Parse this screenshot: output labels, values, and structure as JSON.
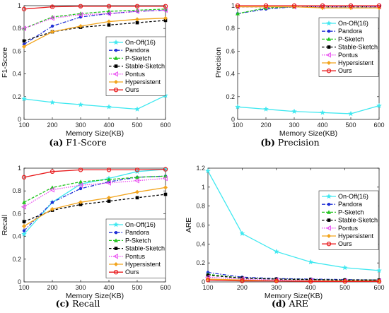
{
  "colors": {
    "On-Off(16)": "#3fe8f0",
    "Pandora": "#1f2fd6",
    "P-Sketch": "#22c41f",
    "Stable-Sketch": "#000000",
    "Pontus": "#e94cf0",
    "Hypersistent": "#f2a41c",
    "Ours": "#e8191b"
  },
  "chart_data": [
    {
      "type": "line",
      "caption_letter": "(a)",
      "caption_text": "F1-Score",
      "xlabel": "Memory Size(KB)",
      "ylabel": "F1-Score",
      "x": [
        100,
        200,
        300,
        400,
        500,
        600
      ],
      "xlim": [
        100,
        600
      ],
      "ylim": [
        0,
        1
      ],
      "xticks": [
        "100",
        "200",
        "300",
        "400",
        "500",
        "600"
      ],
      "yticks": [
        "0",
        "0.2",
        "0.4",
        "0.6",
        "0.8",
        "1"
      ],
      "ytick_values": [
        0,
        0.2,
        0.4,
        0.6,
        0.8,
        1
      ],
      "legend_position": "lower-right",
      "series": [
        {
          "name": "On-Off(16)",
          "values": [
            0.18,
            0.15,
            0.13,
            0.11,
            0.09,
            0.21
          ]
        },
        {
          "name": "Pandora",
          "values": [
            0.66,
            0.82,
            0.9,
            0.93,
            0.95,
            0.96
          ]
        },
        {
          "name": "P-Sketch",
          "values": [
            0.8,
            0.9,
            0.93,
            0.95,
            0.96,
            0.97
          ]
        },
        {
          "name": "Stable-Sketch",
          "values": [
            0.69,
            0.77,
            0.81,
            0.83,
            0.85,
            0.87
          ]
        },
        {
          "name": "Pontus",
          "values": [
            0.8,
            0.89,
            0.92,
            0.93,
            0.95,
            0.96
          ]
        },
        {
          "name": "Hypersistent",
          "values": [
            0.64,
            0.77,
            0.82,
            0.86,
            0.88,
            0.89
          ]
        },
        {
          "name": "Ours",
          "values": [
            0.97,
            0.99,
            0.995,
            0.995,
            0.995,
            0.995
          ]
        }
      ]
    },
    {
      "type": "line",
      "caption_letter": "(b)",
      "caption_text": "Precision",
      "xlabel": "Memory Size(KB)",
      "ylabel": "Precision",
      "x": [
        100,
        200,
        300,
        400,
        500,
        600
      ],
      "xlim": [
        100,
        600
      ],
      "ylim": [
        0,
        1
      ],
      "xticks": [
        "100",
        "200",
        "300",
        "400",
        "500",
        "600"
      ],
      "yticks": [
        "0",
        "0.2",
        "0.4",
        "0.6",
        "0.8",
        "1"
      ],
      "ytick_values": [
        0,
        0.2,
        0.4,
        0.6,
        0.8,
        1
      ],
      "legend_position": "middle-right",
      "series": [
        {
          "name": "On-Off(16)",
          "values": [
            0.11,
            0.09,
            0.07,
            0.06,
            0.05,
            0.12
          ]
        },
        {
          "name": "Pandora",
          "values": [
            0.93,
            0.97,
            0.99,
            0.99,
            0.99,
            0.99
          ]
        },
        {
          "name": "P-Sketch",
          "values": [
            0.93,
            0.98,
            0.99,
            0.99,
            0.99,
            0.99
          ]
        },
        {
          "name": "Stable-Sketch",
          "values": [
            0.99,
            0.99,
            0.99,
            0.99,
            0.99,
            0.99
          ]
        },
        {
          "name": "Pontus",
          "values": [
            0.99,
            0.99,
            0.99,
            0.99,
            0.99,
            0.99
          ]
        },
        {
          "name": "Hypersistent",
          "values": [
            0.99,
            0.99,
            0.99,
            0.98,
            0.98,
            0.98
          ]
        },
        {
          "name": "Ours",
          "values": [
            1.0,
            1.0,
            1.0,
            1.0,
            1.0,
            1.0
          ]
        }
      ]
    },
    {
      "type": "line",
      "caption_letter": "(c)",
      "caption_text": "Recall",
      "xlabel": "Memory Size(KB)",
      "ylabel": "Recall",
      "x": [
        100,
        200,
        300,
        400,
        500,
        600
      ],
      "xlim": [
        100,
        600
      ],
      "ylim": [
        0,
        1
      ],
      "xticks": [
        "100",
        "200",
        "300",
        "400",
        "500",
        "600"
      ],
      "yticks": [
        "0",
        "0.2",
        "0.4",
        "0.6",
        "0.8",
        "1"
      ],
      "ytick_values": [
        0,
        0.2,
        0.4,
        0.6,
        0.8,
        1
      ],
      "legend_position": "lower-right",
      "series": [
        {
          "name": "On-Off(16)",
          "values": [
            0.42,
            0.7,
            0.86,
            0.91,
            0.97,
            0.99
          ]
        },
        {
          "name": "Pandora",
          "values": [
            0.45,
            0.7,
            0.82,
            0.88,
            0.92,
            0.93
          ]
        },
        {
          "name": "P-Sketch",
          "values": [
            0.7,
            0.83,
            0.88,
            0.9,
            0.92,
            0.93
          ]
        },
        {
          "name": "Stable-Sketch",
          "values": [
            0.53,
            0.63,
            0.68,
            0.71,
            0.74,
            0.77
          ]
        },
        {
          "name": "Pontus",
          "values": [
            0.66,
            0.81,
            0.85,
            0.87,
            0.89,
            0.91
          ]
        },
        {
          "name": "Hypersistent",
          "values": [
            0.49,
            0.64,
            0.7,
            0.74,
            0.79,
            0.83
          ]
        },
        {
          "name": "Ours",
          "values": [
            0.92,
            0.97,
            0.985,
            0.985,
            0.985,
            0.99
          ]
        }
      ]
    },
    {
      "type": "line",
      "caption_letter": "(d)",
      "caption_text": "ARE",
      "xlabel": "Memory Size(KB)",
      "ylabel": "ARE",
      "x": [
        100,
        200,
        300,
        400,
        500,
        600
      ],
      "xlim": [
        100,
        600
      ],
      "ylim": [
        0,
        1.2
      ],
      "xticks": [
        "100",
        "200",
        "300",
        "400",
        "500",
        "600"
      ],
      "yticks": [
        "0",
        "0.2",
        "0.4",
        "0.6",
        "0.8",
        "1",
        "1.2"
      ],
      "ytick_values": [
        0,
        0.2,
        0.4,
        0.6,
        0.8,
        1,
        1.2
      ],
      "legend_position": "upper-right",
      "series": [
        {
          "name": "On-Off(16)",
          "values": [
            1.17,
            0.51,
            0.32,
            0.21,
            0.15,
            0.12
          ]
        },
        {
          "name": "Pandora",
          "values": [
            0.1,
            0.05,
            0.035,
            0.03,
            0.025,
            0.02
          ]
        },
        {
          "name": "P-Sketch",
          "values": [
            0.08,
            0.04,
            0.03,
            0.025,
            0.02,
            0.02
          ]
        },
        {
          "name": "Stable-Sketch",
          "values": [
            0.07,
            0.04,
            0.03,
            0.025,
            0.02,
            0.02
          ]
        },
        {
          "name": "Pontus",
          "values": [
            0.05,
            0.03,
            0.02,
            0.015,
            0.01,
            0.01
          ]
        },
        {
          "name": "Hypersistent",
          "values": [
            0.03,
            0.02,
            0.01,
            0.01,
            0.01,
            0.01
          ]
        },
        {
          "name": "Ours",
          "values": [
            0.02,
            0.01,
            0.01,
            0.005,
            0.005,
            0.005
          ]
        }
      ]
    }
  ]
}
